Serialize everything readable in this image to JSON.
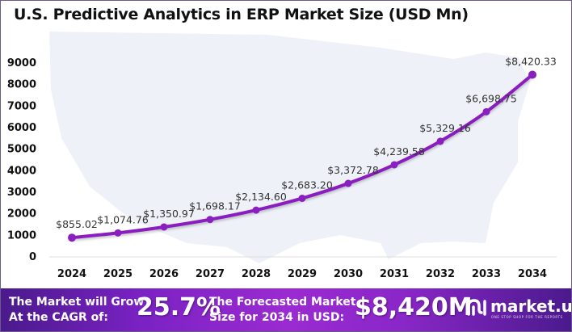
{
  "chart_data": {
    "type": "line",
    "title": "U.S. Predictive Analytics in ERP Market Size (USD Mn)",
    "xlabel": "",
    "ylabel": "",
    "categories": [
      "2024",
      "2025",
      "2026",
      "2027",
      "2028",
      "2029",
      "2030",
      "2031",
      "2032",
      "2033",
      "2034"
    ],
    "series": [
      {
        "name": "Market Size",
        "values": [
          855.02,
          1074.76,
          1350.97,
          1698.17,
          2134.6,
          2683.2,
          3372.78,
          4239.58,
          5329.16,
          6698.75,
          8420.33
        ],
        "labels": [
          "$855.02",
          "$1,074.76",
          "$1,350.97",
          "$1,698.17",
          "$2,134.60",
          "$2,683.20",
          "$3,372.78",
          "$4,239.58",
          "$5,329.16",
          "$6,698.75",
          "$8,420.33"
        ]
      }
    ],
    "yticks": [
      "0",
      "1000",
      "2000",
      "3000",
      "4000",
      "5000",
      "6000",
      "7000",
      "8000",
      "9000"
    ],
    "ylim": [
      0,
      9000
    ],
    "grid": false,
    "line_color": "#8a1fc0"
  },
  "banner": {
    "cagr_text_line1": "The Market will Grow",
    "cagr_text_line2": "At the CAGR of:",
    "cagr_value": "25.7%",
    "forecast_text_line1": "The Forecasted Market",
    "forecast_text_line2": "Size for 2034 in USD:",
    "forecast_value": "$8,420M"
  },
  "logo": {
    "name": "market.us",
    "tagline": "ONE STOP SHOP FOR THE REPORTS"
  }
}
